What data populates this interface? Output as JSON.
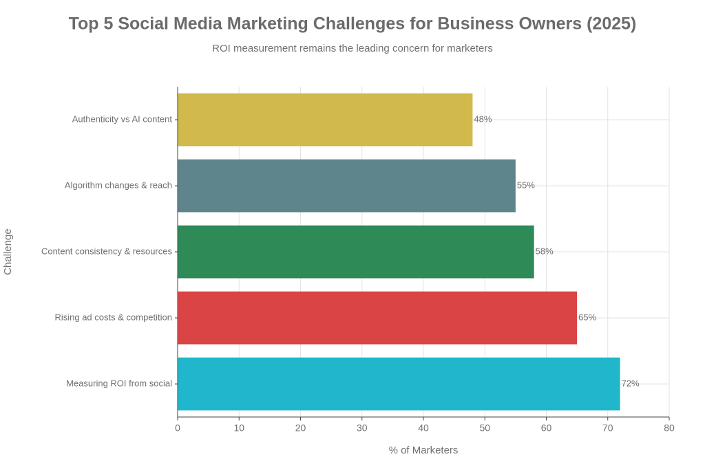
{
  "chart_data": {
    "type": "bar",
    "orientation": "horizontal",
    "title": "Top 5 Social Media Marketing Challenges for Business Owners (2025)",
    "subtitle": "ROI measurement remains the leading concern for marketers",
    "x_label": "% of Marketers",
    "y_label": "Challenge",
    "categories": [
      "Authenticity vs AI content",
      "Algorithm changes & reach",
      "Content consistency & resources",
      "Rising ad costs & competition",
      "Measuring ROI from social"
    ],
    "values": [
      48,
      55,
      58,
      65,
      72
    ],
    "value_labels": [
      "48%",
      "55%",
      "58%",
      "65%",
      "72%"
    ],
    "colors": [
      "#d1b94b",
      "#5e858c",
      "#2e8a57",
      "#db4445",
      "#20b6cb"
    ],
    "xlim": [
      0,
      80
    ],
    "xticks": [
      0,
      10,
      20,
      30,
      40,
      50,
      60,
      70,
      80
    ],
    "grid": true
  }
}
